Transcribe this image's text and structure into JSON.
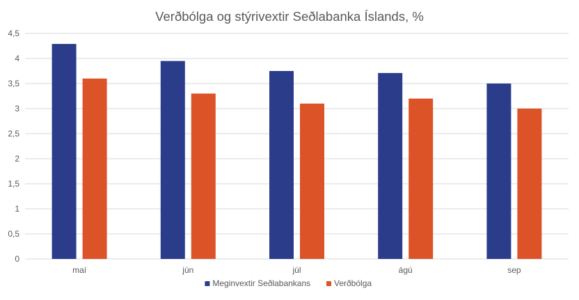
{
  "chart_data": {
    "type": "bar",
    "title": "Verðbólga og stýrivextir Seðlabanka Íslands, %",
    "categories": [
      "maí",
      "jún",
      "júl",
      "ágú",
      "sep"
    ],
    "series": [
      {
        "name": "Meginvextir Seðlabankans",
        "color": "#2b3c8a",
        "values": [
          4.29,
          3.95,
          3.75,
          3.71,
          3.5
        ]
      },
      {
        "name": "Verðbólga",
        "color": "#dc5328",
        "values": [
          3.6,
          3.3,
          3.1,
          3.2,
          3.0
        ]
      }
    ],
    "xlabel": "",
    "ylabel": "",
    "ylim": [
      0,
      4.5
    ],
    "yticks": [
      "0",
      "0,5",
      "1",
      "1,5",
      "2",
      "2,5",
      "3",
      "3,5",
      "4",
      "4,5"
    ],
    "grid": true,
    "legend_position": "bottom"
  }
}
